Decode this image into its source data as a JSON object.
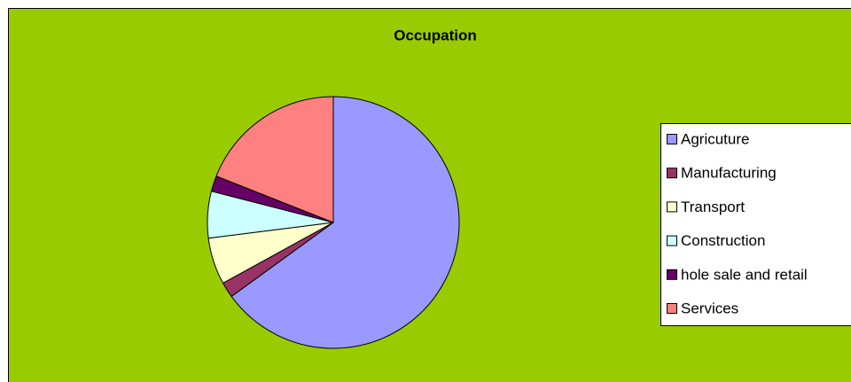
{
  "chart_data": {
    "type": "pie",
    "title": "Occupation",
    "categories": [
      "Agricuture",
      "Manufacturing",
      "Transport",
      "Construction",
      "hole sale and retail",
      "Services"
    ],
    "values": [
      65,
      2,
      6,
      6,
      2,
      19
    ],
    "colors": [
      "#9999ff",
      "#993366",
      "#ffffcc",
      "#ccffff",
      "#660066",
      "#ff8080"
    ],
    "legend": "right"
  }
}
